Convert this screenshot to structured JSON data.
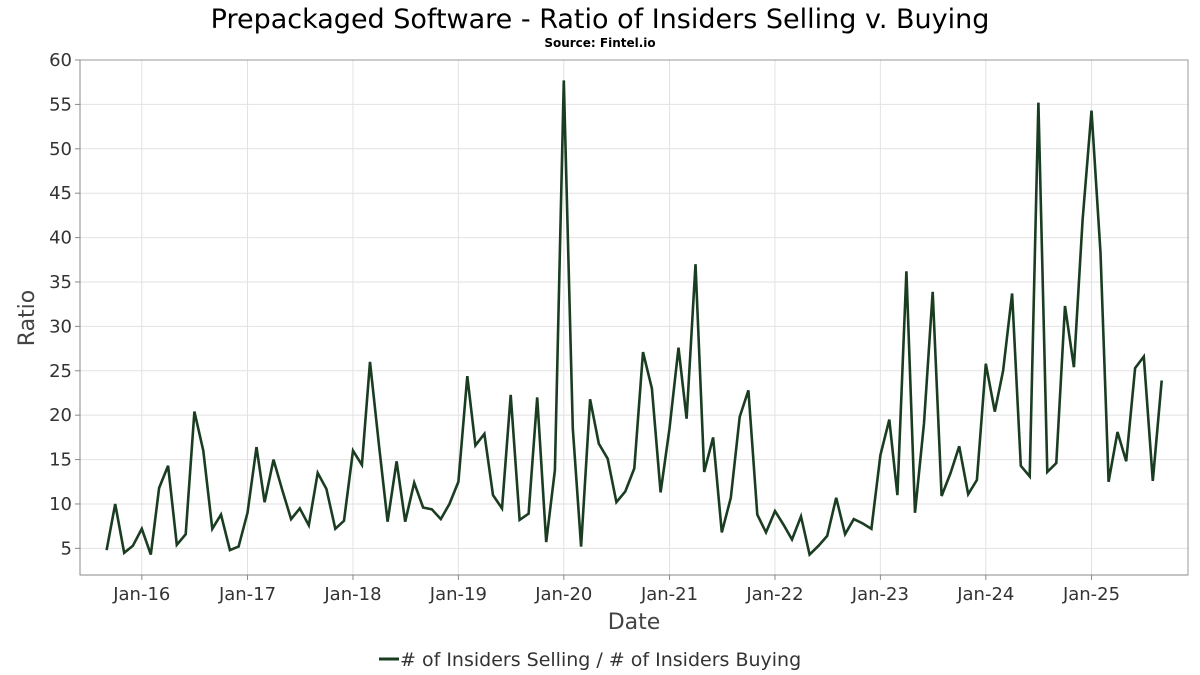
{
  "chart_data": {
    "type": "line",
    "title": "Prepackaged Software - Ratio of Insiders Selling v. Buying",
    "subtitle": "Source: Fintel.io",
    "xlabel": "Date",
    "ylabel": "Ratio",
    "ylim": [
      2,
      60
    ],
    "y_ticks": [
      5,
      10,
      15,
      20,
      25,
      30,
      35,
      40,
      45,
      50,
      55,
      60
    ],
    "x_ticks": [
      {
        "label": "Jan-16",
        "date": "2016-01-01"
      },
      {
        "label": "Jan-17",
        "date": "2017-01-01"
      },
      {
        "label": "Jan-18",
        "date": "2018-01-01"
      },
      {
        "label": "Jan-19",
        "date": "2019-01-01"
      },
      {
        "label": "Jan-20",
        "date": "2020-01-01"
      },
      {
        "label": "Jan-21",
        "date": "2021-01-01"
      },
      {
        "label": "Jan-22",
        "date": "2022-01-01"
      },
      {
        "label": "Jan-23",
        "date": "2023-01-01"
      },
      {
        "label": "Jan-24",
        "date": "2024-01-01"
      },
      {
        "label": "Jan-25",
        "date": "2025-01-01"
      }
    ],
    "xlim": [
      "2015-06-01",
      "2025-12-01"
    ],
    "grid": true,
    "legend_position": "bottom",
    "series": [
      {
        "name": "# of Insiders Selling / # of Insiders Buying",
        "color": "#1a3d22",
        "points": [
          [
            "2015-09-01",
            4.8
          ],
          [
            "2015-10-01",
            10.0
          ],
          [
            "2015-11-01",
            4.5
          ],
          [
            "2015-12-01",
            5.3
          ],
          [
            "2016-01-01",
            7.2
          ],
          [
            "2016-02-01",
            4.3
          ],
          [
            "2016-03-01",
            11.8
          ],
          [
            "2016-04-01",
            14.3
          ],
          [
            "2016-05-01",
            5.4
          ],
          [
            "2016-06-01",
            6.6
          ],
          [
            "2016-07-01",
            20.4
          ],
          [
            "2016-08-01",
            16.0
          ],
          [
            "2016-09-01",
            7.2
          ],
          [
            "2016-10-01",
            8.8
          ],
          [
            "2016-11-01",
            4.8
          ],
          [
            "2016-12-01",
            5.2
          ],
          [
            "2017-01-01",
            9.0
          ],
          [
            "2017-02-01",
            16.4
          ],
          [
            "2017-03-01",
            10.2
          ],
          [
            "2017-04-01",
            15.0
          ],
          [
            "2017-05-01",
            11.6
          ],
          [
            "2017-06-01",
            8.3
          ],
          [
            "2017-07-01",
            9.5
          ],
          [
            "2017-08-01",
            7.6
          ],
          [
            "2017-09-01",
            13.5
          ],
          [
            "2017-10-01",
            11.7
          ],
          [
            "2017-11-01",
            7.2
          ],
          [
            "2017-12-01",
            8.1
          ],
          [
            "2018-01-01",
            16.0
          ],
          [
            "2018-02-01",
            14.4
          ],
          [
            "2018-03-01",
            26.0
          ],
          [
            "2018-04-01",
            16.6
          ],
          [
            "2018-05-01",
            8.0
          ],
          [
            "2018-06-01",
            14.8
          ],
          [
            "2018-07-01",
            8.0
          ],
          [
            "2018-08-01",
            12.4
          ],
          [
            "2018-09-01",
            9.6
          ],
          [
            "2018-10-01",
            9.4
          ],
          [
            "2018-11-01",
            8.3
          ],
          [
            "2018-12-01",
            10.0
          ],
          [
            "2019-01-01",
            12.5
          ],
          [
            "2019-02-01",
            24.4
          ],
          [
            "2019-03-01",
            16.6
          ],
          [
            "2019-04-01",
            17.9
          ],
          [
            "2019-05-01",
            11.0
          ],
          [
            "2019-06-01",
            9.5
          ],
          [
            "2019-07-01",
            22.3
          ],
          [
            "2019-08-01",
            8.2
          ],
          [
            "2019-09-01",
            8.9
          ],
          [
            "2019-10-01",
            22.0
          ],
          [
            "2019-11-01",
            5.7
          ],
          [
            "2019-12-01",
            13.8
          ],
          [
            "2020-01-01",
            57.7
          ],
          [
            "2020-02-01",
            18.5
          ],
          [
            "2020-03-01",
            5.2
          ],
          [
            "2020-04-01",
            21.8
          ],
          [
            "2020-05-01",
            16.8
          ],
          [
            "2020-06-01",
            15.1
          ],
          [
            "2020-07-01",
            10.2
          ],
          [
            "2020-08-01",
            11.4
          ],
          [
            "2020-09-01",
            14.0
          ],
          [
            "2020-10-01",
            27.1
          ],
          [
            "2020-11-01",
            23.0
          ],
          [
            "2020-12-01",
            11.3
          ],
          [
            "2021-01-01",
            18.5
          ],
          [
            "2021-02-01",
            27.6
          ],
          [
            "2021-03-01",
            19.6
          ],
          [
            "2021-04-01",
            37.0
          ],
          [
            "2021-05-01",
            13.6
          ],
          [
            "2021-06-01",
            17.5
          ],
          [
            "2021-07-01",
            6.8
          ],
          [
            "2021-08-01",
            10.7
          ],
          [
            "2021-09-01",
            19.8
          ],
          [
            "2021-10-01",
            22.8
          ],
          [
            "2021-11-01",
            8.8
          ],
          [
            "2021-12-01",
            6.8
          ],
          [
            "2022-01-01",
            9.2
          ],
          [
            "2022-02-01",
            7.6
          ],
          [
            "2022-03-01",
            6.0
          ],
          [
            "2022-04-01",
            8.6
          ],
          [
            "2022-05-01",
            4.3
          ],
          [
            "2022-06-01",
            5.3
          ],
          [
            "2022-07-01",
            6.4
          ],
          [
            "2022-08-01",
            10.7
          ],
          [
            "2022-09-01",
            6.6
          ],
          [
            "2022-10-01",
            8.3
          ],
          [
            "2022-11-01",
            7.8
          ],
          [
            "2022-12-01",
            7.2
          ],
          [
            "2023-01-01",
            15.5
          ],
          [
            "2023-02-01",
            19.5
          ],
          [
            "2023-03-01",
            11.0
          ],
          [
            "2023-04-01",
            36.2
          ],
          [
            "2023-05-01",
            9.0
          ],
          [
            "2023-06-01",
            19.1
          ],
          [
            "2023-07-01",
            33.9
          ],
          [
            "2023-08-01",
            10.9
          ],
          [
            "2023-09-01",
            13.5
          ],
          [
            "2023-10-01",
            16.5
          ],
          [
            "2023-11-01",
            11.1
          ],
          [
            "2023-12-01",
            12.7
          ],
          [
            "2024-01-01",
            25.8
          ],
          [
            "2024-02-01",
            20.4
          ],
          [
            "2024-03-01",
            25.0
          ],
          [
            "2024-04-01",
            33.7
          ],
          [
            "2024-05-01",
            14.3
          ],
          [
            "2024-06-01",
            13.1
          ],
          [
            "2024-07-01",
            55.2
          ],
          [
            "2024-08-01",
            13.6
          ],
          [
            "2024-09-01",
            14.6
          ],
          [
            "2024-10-01",
            32.3
          ],
          [
            "2024-11-01",
            25.4
          ],
          [
            "2024-12-01",
            42.0
          ],
          [
            "2025-01-01",
            54.3
          ],
          [
            "2025-02-01",
            38.3
          ],
          [
            "2025-03-01",
            12.5
          ],
          [
            "2025-04-01",
            18.1
          ],
          [
            "2025-05-01",
            14.8
          ],
          [
            "2025-06-01",
            25.3
          ],
          [
            "2025-07-01",
            26.6
          ],
          [
            "2025-08-01",
            12.6
          ],
          [
            "2025-09-01",
            23.9
          ]
        ]
      }
    ]
  }
}
